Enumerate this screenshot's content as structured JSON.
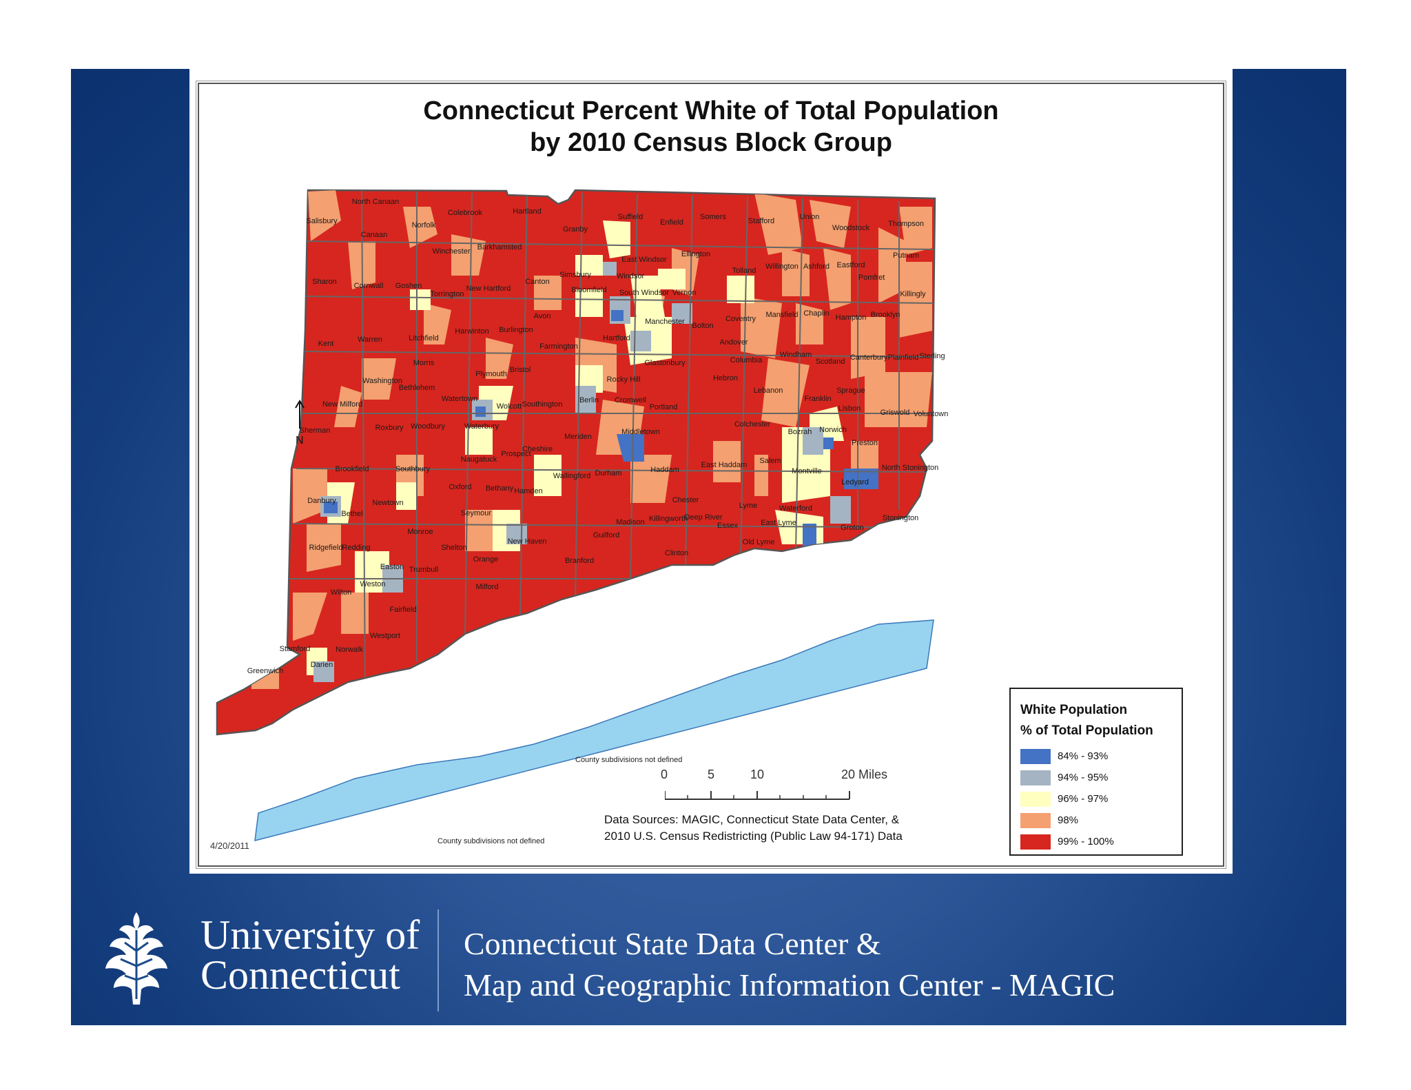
{
  "map": {
    "title_line1": "Connecticut Percent White of Total Population",
    "title_line2": "by 2010 Census Block Group",
    "date": "4/20/2011",
    "sources_line1": "Data Sources: MAGIC, Connecticut State Data Center, &",
    "sources_line2": "2010 U.S. Census Redistricting (Public Law 94-171) Data",
    "north_label": "N",
    "water_labels": [
      "County subdivisions not defined",
      "County subdivisions not defined"
    ],
    "scale": {
      "ticks": [
        "0",
        "5",
        "10",
        "20 Miles"
      ]
    },
    "legend": {
      "title_line1": "White Population",
      "title_line2": "% of Total Population",
      "classes": [
        {
          "label": "84% - 93%",
          "color": "#4472c4"
        },
        {
          "label": "94% - 95%",
          "color": "#a5b4c2"
        },
        {
          "label": "96% - 97%",
          "color": "#ffffc0"
        },
        {
          "label": "98%",
          "color": "#f4a070"
        },
        {
          "label": "99% - 100%",
          "color": "#d7261f"
        }
      ]
    },
    "towns": [
      "North Canaan",
      "Salisbury",
      "Canaan",
      "Norfolk",
      "Colebrook",
      "Hartland",
      "Granby",
      "Suffield",
      "Enfield",
      "Somers",
      "Stafford",
      "Union",
      "Woodstock",
      "Thompson",
      "Winchester",
      "Barkhamsted",
      "East Windsor",
      "Ellington",
      "Tolland",
      "Willington",
      "Ashford",
      "Eastford",
      "Putnam",
      "Sharon",
      "Cornwall",
      "Goshen",
      "Torrington",
      "New Hartford",
      "Canton",
      "Simsbury",
      "Windsor",
      "Bloomfield",
      "South Windsor",
      "Vernon",
      "Pomfret",
      "Killingly",
      "Avon",
      "Manchester",
      "Bolton",
      "Coventry",
      "Mansfield",
      "Chaplin",
      "Hampton",
      "Brooklyn",
      "Kent",
      "Warren",
      "Litchfield",
      "Harwinton",
      "Burlington",
      "Farmington",
      "Hartford",
      "Andover",
      "Windham",
      "Scotland",
      "Canterbury",
      "Plainfield",
      "Sterling",
      "Morris",
      "Washington",
      "Bethlehem",
      "Plymouth",
      "Bristol",
      "Glastonbury",
      "Columbia",
      "Hebron",
      "Rocky Hill",
      "Lebanon",
      "Franklin",
      "Sprague",
      "New Milford",
      "Watertown",
      "Wolcott",
      "Southington",
      "Berlin",
      "Cromwell",
      "Portland",
      "Lisbon",
      "Griswold",
      "Voluntown",
      "Sherman",
      "Roxbury",
      "Woodbury",
      "Waterbury",
      "Middletown",
      "Colchester",
      "Bozrah",
      "Norwich",
      "Meriden",
      "Cheshire",
      "Prospect",
      "Preston",
      "Naugatuck",
      "Salem",
      "East Haddam",
      "Montville",
      "Brookfield",
      "Southbury",
      "Oxford",
      "Durham",
      "Haddam",
      "Wallingford",
      "Ledyard",
      "North Stonington",
      "Bethany",
      "Hamden",
      "Danbury",
      "Newtown",
      "Seymour",
      "Chester",
      "Lyme",
      "Waterford",
      "Bethel",
      "Madison",
      "Killingworth",
      "Deep River",
      "Essex",
      "East Lyme",
      "Groton",
      "Stonington",
      "Monroe",
      "New Haven",
      "Guilford",
      "Old Lyme",
      "Ridgefield",
      "Redding",
      "Shelton",
      "Orange",
      "Clinton",
      "Branford",
      "Easton",
      "Trumbull",
      "Weston",
      "Milford",
      "Wilton",
      "Fairfield",
      "Westport",
      "Stamford",
      "Norwalk",
      "Darien",
      "Greenwich"
    ]
  },
  "footer": {
    "university_line1": "University of",
    "university_line2": "Connecticut",
    "center_line1": "Connecticut State Data Center &",
    "center_line2": "Map and Geographic Information Center - MAGIC",
    "logo_icon": "oak-leaf-logo-icon"
  }
}
